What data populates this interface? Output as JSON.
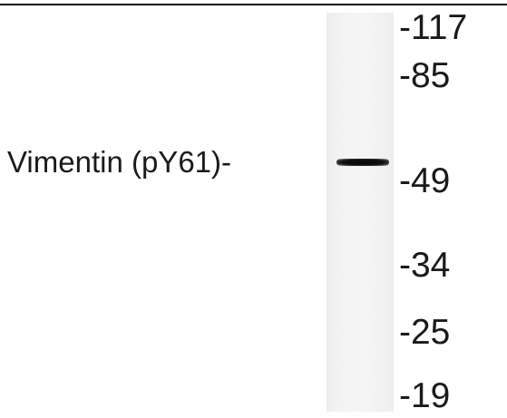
{
  "blot": {
    "protein_label": "Vimentin (pY61)-",
    "markers": [
      "-117",
      "-85",
      "-49",
      "-34",
      "-25",
      "-19"
    ],
    "band_color": "#0a0a0a",
    "lane_color": "#f2f2f2"
  }
}
